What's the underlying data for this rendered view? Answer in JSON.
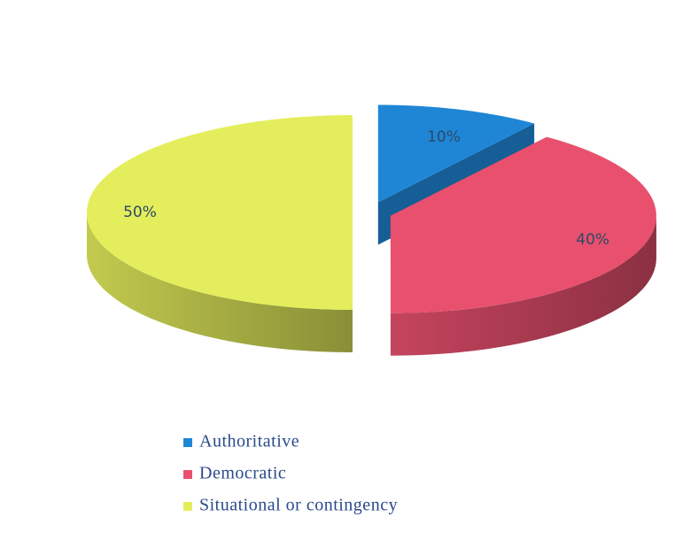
{
  "chart_data": {
    "type": "pie",
    "three_d": true,
    "exploded": true,
    "categories": [
      "Authoritative",
      "Democratic",
      "Situational or contingency"
    ],
    "values": [
      10,
      40,
      50
    ],
    "value_labels": [
      "10%",
      "40%",
      "50%"
    ],
    "colors": [
      "#1f86d6",
      "#e8506e",
      "#e4ee5c"
    ],
    "legend": "bottom"
  }
}
